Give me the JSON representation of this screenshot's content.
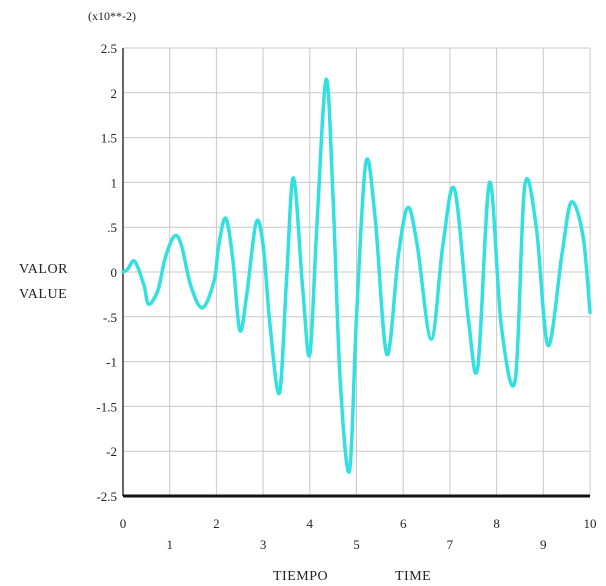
{
  "chart_data": {
    "type": "line",
    "multiplier_label": "(x10**-2)",
    "ylabel_lines": [
      "VALOR",
      "VALUE"
    ],
    "xlabel_parts": [
      "TIEMPO",
      "TIME"
    ],
    "xlim": [
      0,
      10
    ],
    "ylim": [
      -2.5,
      2.5
    ],
    "grid": true,
    "x_ticks": [
      0,
      1,
      2,
      3,
      4,
      5,
      6,
      7,
      8,
      9,
      10
    ],
    "x_tick_labels": [
      "0",
      "1",
      "2",
      "3",
      "4",
      "5",
      "6",
      "7",
      "8",
      "9",
      "10"
    ],
    "y_ticks": [
      2.5,
      2,
      1.5,
      1,
      0.5,
      0,
      -0.5,
      -1,
      -1.5,
      -2,
      -2.5
    ],
    "y_tick_labels": [
      "2.5",
      "2",
      "1.5",
      "1",
      ".5",
      "0",
      "-.5",
      "-1",
      "-1.5",
      "-2",
      "-2.5"
    ],
    "line_color": "#33e0e0",
    "series": [
      {
        "x": [
          0,
          0.1,
          0.25,
          0.45,
          0.55,
          0.75,
          0.9,
          1.1,
          1.25,
          1.45,
          1.7,
          1.95,
          2.05,
          2.2,
          2.35,
          2.5,
          2.65,
          2.85,
          3.0,
          3.15,
          3.35,
          3.5,
          3.65,
          3.85,
          4.0,
          4.15,
          4.35,
          4.5,
          4.65,
          4.85,
          5.0,
          5.2,
          5.4,
          5.65,
          5.9,
          6.1,
          6.3,
          6.6,
          6.85,
          7.1,
          7.4,
          7.6,
          7.85,
          8.1,
          8.4,
          8.6,
          8.85,
          9.1,
          9.4,
          9.6,
          9.85,
          10.0
        ],
        "y": [
          0,
          0.03,
          0.12,
          -0.15,
          -0.36,
          -0.2,
          0.15,
          0.4,
          0.3,
          -0.15,
          -0.4,
          -0.1,
          0.3,
          0.6,
          0.15,
          -0.65,
          -0.25,
          0.55,
          0.3,
          -0.6,
          -1.35,
          -0.1,
          1.05,
          -0.2,
          -0.92,
          0.5,
          2.15,
          0.8,
          -1.2,
          -2.22,
          -0.5,
          1.22,
          0.6,
          -0.92,
          0.2,
          0.72,
          0.3,
          -0.75,
          0.3,
          0.92,
          -0.55,
          -1.05,
          1.0,
          -0.6,
          -1.2,
          0.95,
          0.5,
          -0.82,
          0.2,
          0.78,
          0.4,
          -0.45
        ]
      }
    ]
  }
}
